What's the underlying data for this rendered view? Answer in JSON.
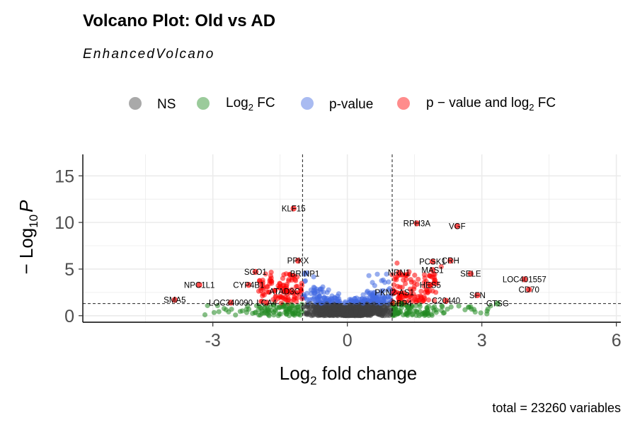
{
  "title": "Volcano Plot: Old vs AD",
  "subtitle": "EnhancedVolcano",
  "caption": "total = 23260 variables",
  "colors": {
    "NS": "#404040",
    "FC": "#228b22",
    "P": "#4169e1",
    "FC_P": "#ff0000",
    "grid": "#ebebeb",
    "cutoff_line": "#000000"
  },
  "chart_data": {
    "type": "scatter",
    "xlabel": {
      "main": "Log",
      "sub": "2",
      "rest": " fold change"
    },
    "ylabel": {
      "prefix": "− Log",
      "sub": "10",
      "italic": "P"
    },
    "xlim": [
      -5.9,
      6.1
    ],
    "ylim": [
      -0.7,
      17.3
    ],
    "xticks": [
      -3,
      0,
      3,
      6
    ],
    "xtick_labels": [
      "-3",
      "0",
      "3",
      "6"
    ],
    "yticks": [
      0,
      5,
      10,
      15
    ],
    "ytick_labels": [
      "0",
      "5",
      "10",
      "15"
    ],
    "fc_cutoff": [
      -1,
      1
    ],
    "p_cutoff_neglog10": 1.3,
    "grid": true,
    "total_points": 23260,
    "legend": {
      "position": "top",
      "items": [
        {
          "key": "NS",
          "label": "NS"
        },
        {
          "key": "FC",
          "label_main": "Log",
          "label_sub": "2",
          "label_rest": " FC"
        },
        {
          "key": "P",
          "label": "p-value"
        },
        {
          "key": "FC_P",
          "label_main": "p − value and log",
          "label_sub": "2",
          "label_rest": " FC"
        }
      ]
    },
    "labeled_points": [
      {
        "gene": "KLF15",
        "x": -1.2,
        "y": 11.5
      },
      {
        "gene": "RPH3A",
        "x": 1.55,
        "y": 9.9
      },
      {
        "gene": "VGF",
        "x": 2.45,
        "y": 9.6
      },
      {
        "gene": "PPKX",
        "x": -1.1,
        "y": 5.9
      },
      {
        "gene": "PCSK1",
        "x": 1.9,
        "y": 5.8
      },
      {
        "gene": "CRH",
        "x": 2.3,
        "y": 5.9
      },
      {
        "gene": "SGO1",
        "x": -2.05,
        "y": 4.7
      },
      {
        "gene": "BRINP1",
        "x": -0.95,
        "y": 4.5
      },
      {
        "gene": "NRN1",
        "x": 1.15,
        "y": 4.6
      },
      {
        "gene": "MAS1",
        "x": 1.9,
        "y": 4.9
      },
      {
        "gene": "SELE",
        "x": 2.75,
        "y": 4.5
      },
      {
        "gene": "LOC401557",
        "x": 3.95,
        "y": 3.9
      },
      {
        "gene": "CYP4B1",
        "x": -2.2,
        "y": 3.3
      },
      {
        "gene": "NPC1L1",
        "x": -3.3,
        "y": 3.3
      },
      {
        "gene": "HES5",
        "x": 1.85,
        "y": 3.3
      },
      {
        "gene": "ATAD3C",
        "x": -1.4,
        "y": 2.6
      },
      {
        "gene": "PKN2-AS1",
        "x": 1.05,
        "y": 2.5
      },
      {
        "gene": "CD70",
        "x": 4.05,
        "y": 2.8
      },
      {
        "gene": "SFN",
        "x": 2.9,
        "y": 2.2
      },
      {
        "gene": "SMA5",
        "x": -3.85,
        "y": 1.7
      },
      {
        "gene": "LOC340090",
        "x": -2.6,
        "y": 1.4
      },
      {
        "gene": "LCA4",
        "x": -1.8,
        "y": 1.4
      },
      {
        "gene": "CBP4",
        "x": 1.2,
        "y": 1.3
      },
      {
        "gene": "C20440",
        "x": 2.2,
        "y": 1.6
      },
      {
        "gene": "CTSG",
        "x": 3.35,
        "y": 1.3
      }
    ]
  }
}
